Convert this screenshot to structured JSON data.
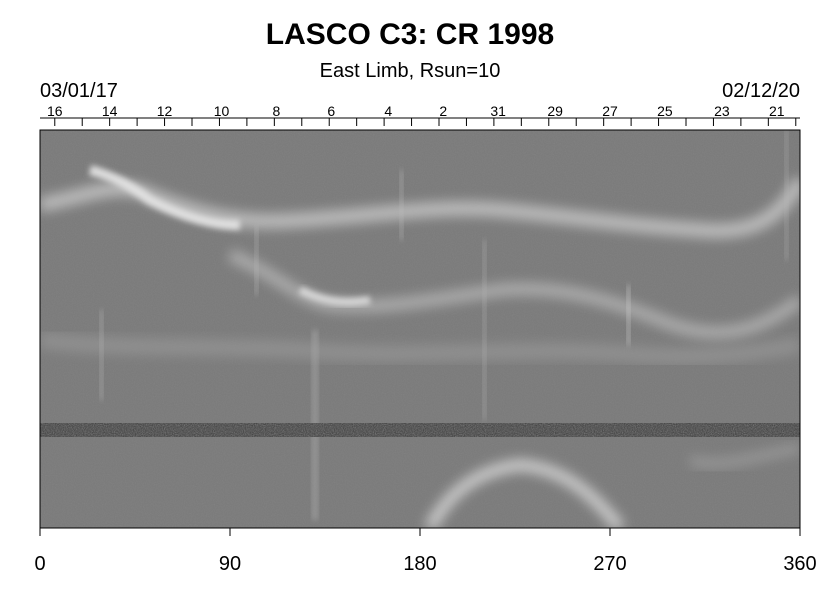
{
  "chart_data": {
    "type": "heatmap",
    "title": "LASCO C3: CR 1998",
    "subtitle": "East Limb, Rsun=10",
    "date_start": "03/01/17",
    "date_end": "02/12/20",
    "xlim": [
      0,
      360
    ],
    "x_ticks": [
      0,
      90,
      180,
      270,
      360
    ],
    "top_day_labels": [
      {
        "day": "16",
        "lon": 7
      },
      {
        "day": "14",
        "lon": 33
      },
      {
        "day": "12",
        "lon": 59
      },
      {
        "day": "10",
        "lon": 86
      },
      {
        "day": "8",
        "lon": 112
      },
      {
        "day": "6",
        "lon": 138
      },
      {
        "day": "4",
        "lon": 165
      },
      {
        "day": "2",
        "lon": 191
      },
      {
        "day": "31",
        "lon": 217
      },
      {
        "day": "29",
        "lon": 244
      },
      {
        "day": "27",
        "lon": 270
      },
      {
        "day": "25",
        "lon": 296
      },
      {
        "day": "23",
        "lon": 323
      },
      {
        "day": "21",
        "lon": 349
      }
    ],
    "colormap": "grayscale",
    "grid": false
  }
}
